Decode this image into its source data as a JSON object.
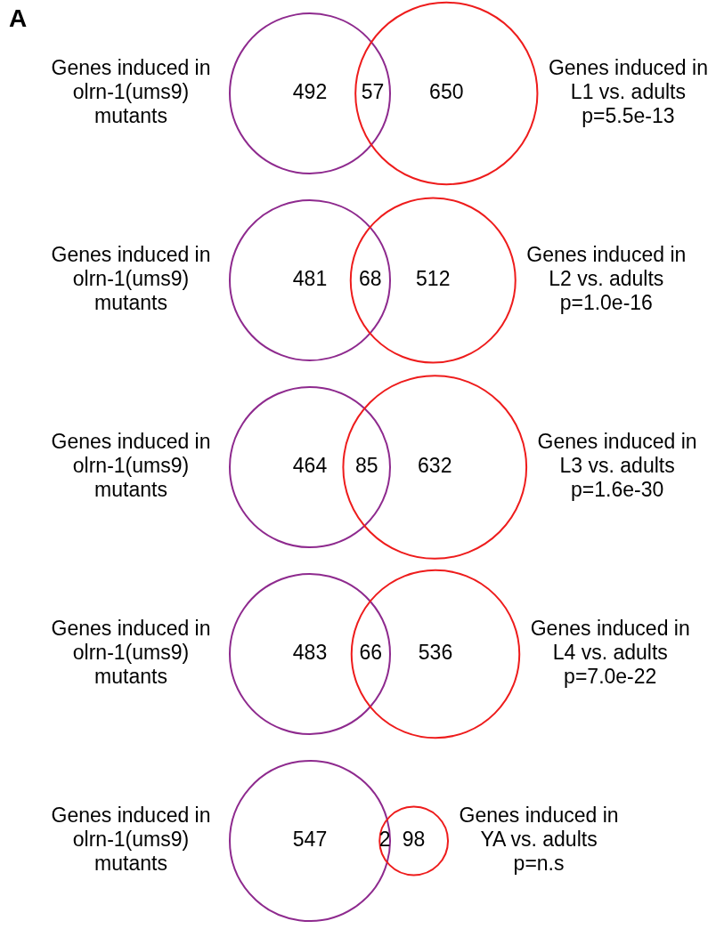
{
  "chart_data": [
    {
      "type": "other",
      "title": "A",
      "categories": [
        "Genes induced in olrn-1(ums9) mutants",
        null,
        "Genes induced in L1 vs. adults"
      ],
      "values": [
        492,
        57,
        650
      ],
      "colors": [
        "#8e2a8e",
        "#8e2a8e",
        "#ee1c1c"
      ],
      "data_labels": true,
      "annotations": [
        "p=5.5e-13"
      ]
    },
    {
      "type": "other",
      "categories": [
        "Genes induced in olrn-1(ums9) mutants",
        null,
        "Genes induced in L2 vs. adults"
      ],
      "values": [
        481,
        68,
        512
      ],
      "colors": [
        "#8e2a8e",
        "#8e2a8e",
        "#ee1c1c"
      ],
      "data_labels": true,
      "annotations": [
        "p=1.0e-16"
      ]
    },
    {
      "type": "other",
      "categories": [
        "Genes induced in olrn-1(ums9) mutants",
        null,
        "Genes induced in L3 vs. adults"
      ],
      "values": [
        464,
        85,
        632
      ],
      "colors": [
        "#8e2a8e",
        "#8e2a8e",
        "#ee1c1c"
      ],
      "data_labels": true,
      "annotations": [
        "p=1.6e-30"
      ]
    },
    {
      "type": "other",
      "categories": [
        "Genes induced in olrn-1(ums9) mutants",
        null,
        "Genes induced in L4 vs. adults"
      ],
      "values": [
        483,
        66,
        536
      ],
      "colors": [
        "#8e2a8e",
        "#8e2a8e",
        "#ee1c1c"
      ],
      "data_labels": true,
      "annotations": [
        "p=7.0e-22"
      ]
    },
    {
      "type": "other",
      "categories": [
        "Genes induced in olrn-1(ums9) mutants",
        null,
        "Genes induced in YA vs. adults"
      ],
      "values": [
        547,
        2,
        98
      ],
      "colors": [
        "#8e2a8e",
        "#8e2a8e",
        "#ee1c1c"
      ],
      "data_labels": true,
      "annotations": [
        "p=n.s"
      ]
    }
  ]
}
